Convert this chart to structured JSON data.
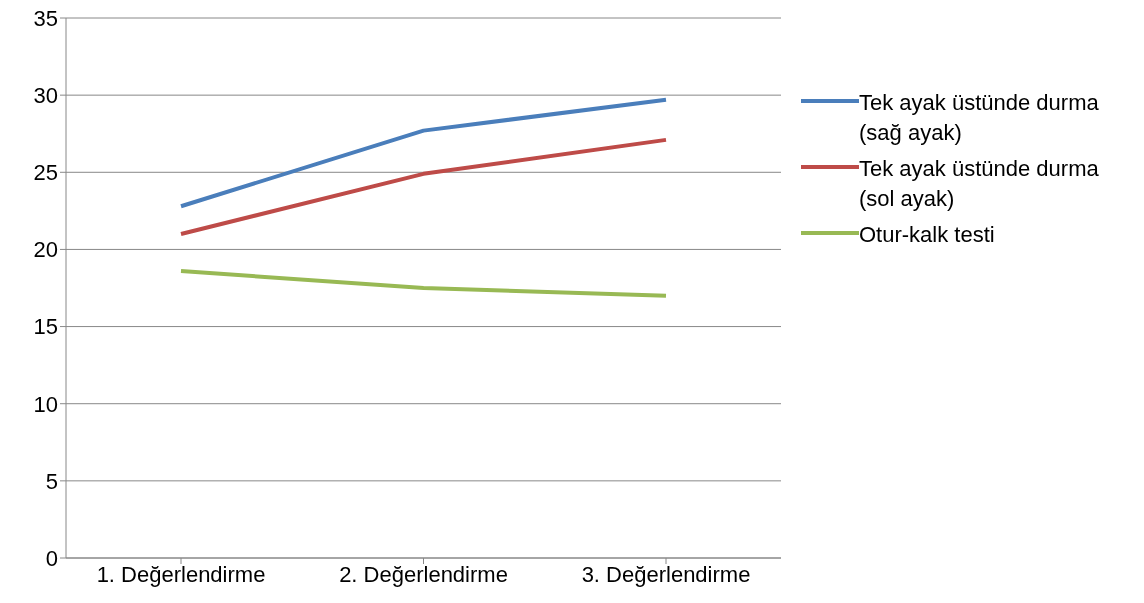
{
  "chart_data": {
    "type": "line",
    "categories": [
      "1. Değerlendirme",
      "2. Değerlendirme",
      "3. Değerlendirme"
    ],
    "series": [
      {
        "name": "Tek ayak üstünde durma (sağ ayak)",
        "color": "#4a7ebb",
        "values": [
          22.8,
          27.7,
          29.7
        ]
      },
      {
        "name": "Tek ayak üstünde durma (sol ayak)",
        "color": "#be4b48",
        "values": [
          21.0,
          24.9,
          27.1
        ]
      },
      {
        "name": "Otur-kalk testi",
        "color": "#98b954",
        "values": [
          18.6,
          17.5,
          17.0
        ]
      }
    ],
    "ylim": [
      0,
      35
    ],
    "yticks": [
      0,
      5,
      10,
      15,
      20,
      25,
      30,
      35
    ],
    "grid": "y",
    "legend": "right",
    "marker": "none",
    "line_style": "solid"
  }
}
